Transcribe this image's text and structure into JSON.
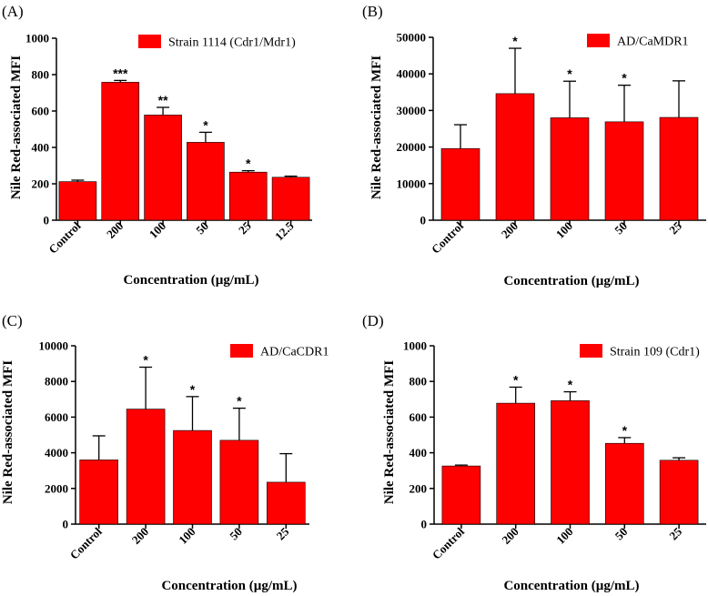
{
  "colors": {
    "bar": "#ff0000",
    "axis": "#000000"
  },
  "chart_data": [
    {
      "panel": "(A)",
      "type": "bar",
      "legend": "Strain 1114 (Cdr1/Mdr1)",
      "categories": [
        "Control",
        "200",
        "100",
        "50",
        "25",
        "12.5"
      ],
      "values": [
        212,
        758,
        578,
        428,
        264,
        236
      ],
      "errors": [
        8,
        10,
        42,
        55,
        8,
        6
      ],
      "significance": [
        "",
        "***",
        "**",
        "*",
        "*",
        ""
      ],
      "ylim": [
        0,
        1000
      ],
      "yticks": [
        0,
        200,
        400,
        600,
        800,
        1000
      ],
      "ylabel": "Nile Red-associated MFI",
      "xlabel": "Concentration (µg/mL)"
    },
    {
      "panel": "(B)",
      "type": "bar",
      "legend": "AD/CaMDR1",
      "categories": [
        "Control",
        "200",
        "100",
        "50",
        "25"
      ],
      "values": [
        19600,
        34600,
        28000,
        26900,
        28100
      ],
      "errors": [
        6500,
        12400,
        10000,
        10000,
        10000
      ],
      "significance": [
        "",
        "*",
        "*",
        "*",
        ""
      ],
      "ylim": [
        0,
        50000
      ],
      "yticks": [
        0,
        10000,
        20000,
        30000,
        40000,
        50000
      ],
      "ylabel": "Nile Red-associated MFI",
      "xlabel": "Concentration (µg/mL)"
    },
    {
      "panel": "(C)",
      "type": "bar",
      "legend": "AD/CaCDR1",
      "categories": [
        "Control",
        "200",
        "100",
        "50",
        "25"
      ],
      "values": [
        3600,
        6450,
        5250,
        4700,
        2350
      ],
      "errors": [
        1350,
        2350,
        1900,
        1800,
        1600
      ],
      "significance": [
        "",
        "*",
        "*",
        "*",
        ""
      ],
      "ylim": [
        0,
        10000
      ],
      "yticks": [
        0,
        2000,
        4000,
        6000,
        8000,
        10000
      ],
      "ylabel": "Nile Red-associated MFI",
      "xlabel": "Concentration (µg/mL)"
    },
    {
      "panel": "(D)",
      "type": "bar",
      "legend": "Strain 109 (Cdr1)",
      "categories": [
        "Control",
        "200",
        "100",
        "50",
        "25"
      ],
      "values": [
        326,
        678,
        692,
        453,
        358
      ],
      "errors": [
        5,
        90,
        50,
        32,
        14
      ],
      "significance": [
        "",
        "*",
        "*",
        "*",
        ""
      ],
      "ylim": [
        0,
        1000
      ],
      "yticks": [
        0,
        200,
        400,
        600,
        800,
        1000
      ],
      "ylabel": "Nile Red-associated MFI",
      "xlabel": "Concentration (µg/mL)"
    }
  ]
}
